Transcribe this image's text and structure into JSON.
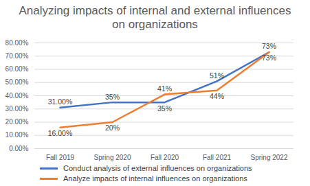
{
  "chart_data": {
    "type": "line",
    "title": "Analyzing impacts of internal and external influences on organizations",
    "categories": [
      "Fall 2019",
      "Spring 2020",
      "Fall 2020",
      "Fall 2021",
      "Spring 2022"
    ],
    "series": [
      {
        "name": "Conduct analysis of external influences on organizations",
        "color": "#4472c4",
        "values": [
          31,
          35,
          35,
          51,
          73
        ],
        "value_labels": [
          "31.00%",
          "35%",
          "35%",
          "51%",
          "73%"
        ]
      },
      {
        "name": "Analyze impacts of internal influences on organizations",
        "color": "#ed7d31",
        "values": [
          16,
          20,
          41,
          44,
          73
        ],
        "value_labels": [
          "16.00%",
          "20%",
          "41%",
          "44%",
          "73%"
        ]
      }
    ],
    "ylim": [
      0,
      80
    ],
    "yticks": [
      {
        "value": 0,
        "label": "0.00%"
      },
      {
        "value": 10,
        "label": "10.00%"
      },
      {
        "value": 20,
        "label": "20.00%"
      },
      {
        "value": 30,
        "label": "30.00%"
      },
      {
        "value": 40,
        "label": "40.00%"
      },
      {
        "value": 50,
        "label": "50.00%"
      },
      {
        "value": 60,
        "label": "60.00%"
      },
      {
        "value": 70,
        "label": "70.00%"
      },
      {
        "value": 80,
        "label": "80.00%"
      }
    ],
    "grid": true,
    "legend": "bottom",
    "data_labels": true
  }
}
